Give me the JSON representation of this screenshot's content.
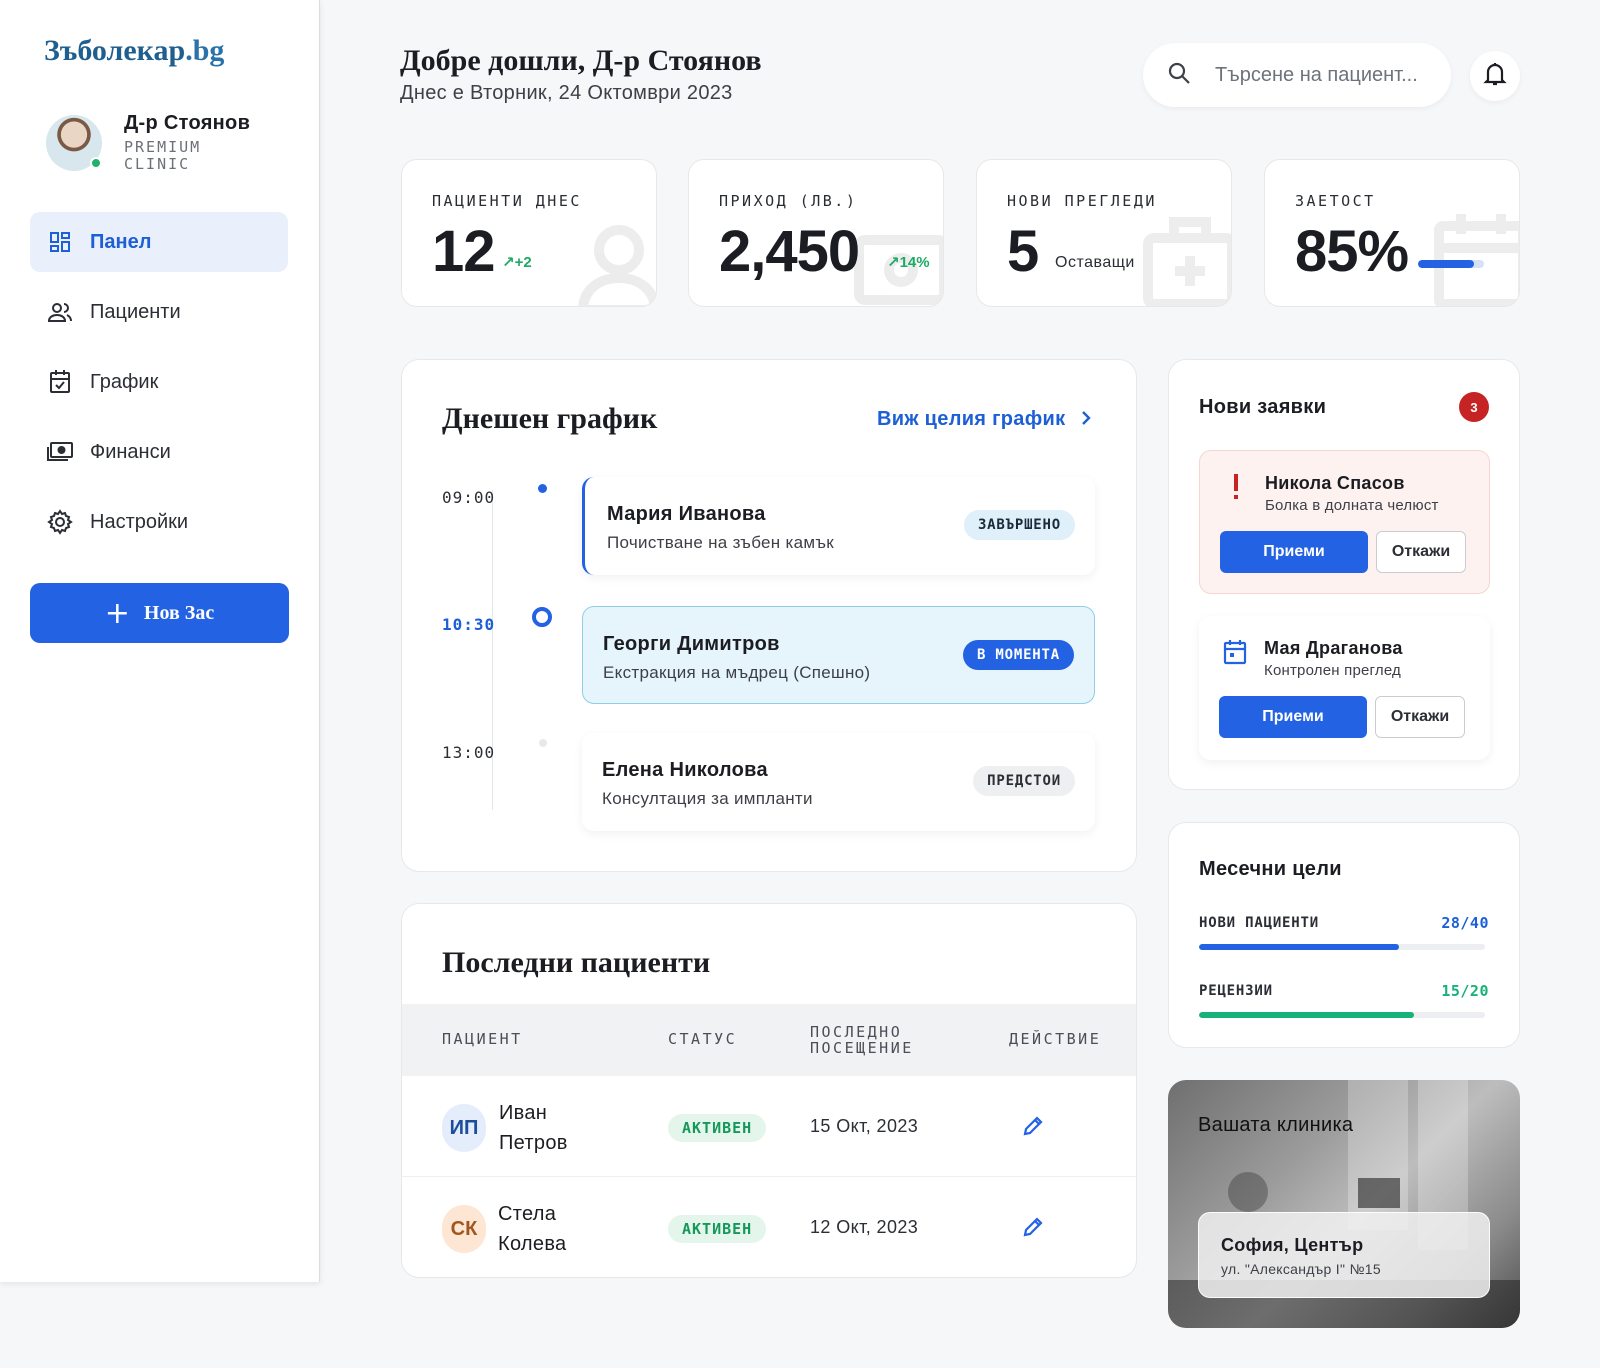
{
  "app": {
    "logo_main": "Зъболекар",
    "logo_tld": ".bg"
  },
  "profile": {
    "name": "Д-р Стоянов",
    "role": "PREMIUM CLINIC"
  },
  "sidebar": {
    "items": [
      {
        "label": "Панел",
        "icon": "dashboard-icon",
        "active": true
      },
      {
        "label": "Пациенти",
        "icon": "users-icon"
      },
      {
        "label": "График",
        "icon": "calendar-check-icon"
      },
      {
        "label": "Финанси",
        "icon": "money-icon"
      },
      {
        "label": "Настройки",
        "icon": "gear-icon"
      }
    ],
    "new_button_label": "Нов Зас"
  },
  "header": {
    "welcome": "Добре дошли, Д-р Стоянов",
    "date": "Днес е Вторник, 24 Октомври 2023",
    "search_placeholder": "Търсене на пациент..."
  },
  "stats": [
    {
      "label": "ПАЦИЕНТИ ДНЕС",
      "value": "12",
      "trend": "+2"
    },
    {
      "label": "ПРИХОД (ЛВ.)",
      "value": "2,450",
      "trend": "14%"
    },
    {
      "label": "НОВИ ПРЕГЛЕДИ",
      "value": "5",
      "sub": "Оставащи"
    },
    {
      "label": "ЗАЕТОСТ",
      "value": "85%",
      "progress": 0.85
    }
  ],
  "schedule": {
    "title": "Днешен график",
    "view_all": "Виж целия график",
    "items": [
      {
        "time": "09:00",
        "name": "Мария Иванова",
        "desc": "Почистване на зъбен камък",
        "status": "ЗАВЪРШЕНО"
      },
      {
        "time": "10:30",
        "name": "Георги Димитров",
        "desc": "Екстракция на мъдрец (Спешно)",
        "status": "В МОМЕНТА"
      },
      {
        "time": "13:00",
        "name": "Елена Николова",
        "desc": "Консултация за импланти",
        "status": "ПРЕДСТОИ"
      }
    ]
  },
  "patients": {
    "title": "Последни пациенти",
    "columns": [
      "ПАЦИЕНТ",
      "СТАТУС",
      "ПОСЛЕДНО ПОСЕЩЕНИЕ",
      "ДЕЙСТВИЕ"
    ],
    "rows": [
      {
        "initials": "ИП",
        "first": "Иван",
        "last": "Петров",
        "status": "АКТИВЕН",
        "visit": "15 Окт, 2023"
      },
      {
        "initials": "СК",
        "first": "Стела",
        "last": "Колева",
        "status": "АКТИВЕН",
        "visit": "12 Окт, 2023"
      }
    ]
  },
  "requests": {
    "title": "Нови заявки",
    "count": "3",
    "items": [
      {
        "name": "Никола Спасов",
        "desc": "Болка в долната челюст",
        "icon": "exclamation-icon",
        "urgent": true
      },
      {
        "name": "Мая Драганова",
        "desc": "Контролен преглед",
        "icon": "calendar-icon",
        "urgent": false
      }
    ],
    "accept_label": "Приеми",
    "reject_label": "Откажи"
  },
  "goals": {
    "title": "Месечни цели",
    "items": [
      {
        "label": "НОВИ ПАЦИЕНТИ",
        "value": "28/40",
        "progress": 0.7,
        "color": "#2262e3"
      },
      {
        "label": "РЕЦЕНЗИИ",
        "value": "15/20",
        "progress": 0.75,
        "color": "#16b27a"
      }
    ]
  },
  "clinic": {
    "title": "Вашата клиника",
    "city": "София, Център",
    "address": "ул. \"Александър I\" №15"
  },
  "colors": {
    "accent": "#2262e3",
    "success": "#16b27a",
    "danger": "#c62424"
  }
}
